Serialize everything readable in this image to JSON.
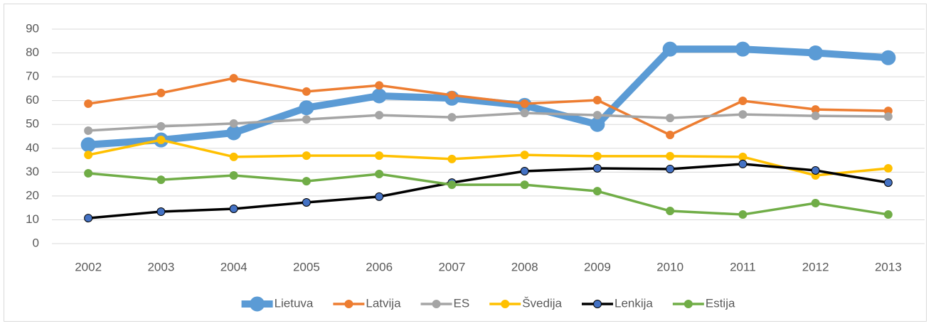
{
  "chart_data": {
    "type": "line",
    "categories": [
      "2002",
      "2003",
      "2004",
      "2005",
      "2006",
      "2007",
      "2008",
      "2009",
      "2010",
      "2011",
      "2012",
      "2013"
    ],
    "series": [
      {
        "name": "Lietuva",
        "color": "#5b9bd5",
        "marker_color": "#5b9bd5",
        "values": [
          41.5,
          43.5,
          46.5,
          57,
          62,
          61,
          58,
          50,
          81.6,
          81.6,
          80,
          78
        ]
      },
      {
        "name": "Latvija",
        "color": "#ed7d31",
        "marker_color": "#ed7d31",
        "values": [
          58.7,
          63.2,
          69.4,
          63.8,
          66.4,
          62.3,
          58.7,
          60.2,
          45.6,
          59.9,
          56.3,
          55.7
        ]
      },
      {
        "name": "ES",
        "color": "#a5a5a5",
        "marker_color": "#a5a5a5",
        "values": [
          47.4,
          49.2,
          50.4,
          52.1,
          53.9,
          53,
          54.8,
          53.9,
          52.7,
          54.2,
          53.6,
          53.3
        ]
      },
      {
        "name": "Švedija",
        "color": "#ffc000",
        "marker_color": "#ffc000",
        "values": [
          37.2,
          43.5,
          36.4,
          36.9,
          36.9,
          35.5,
          37.2,
          36.7,
          36.7,
          36.4,
          28.6,
          31.6
        ]
      },
      {
        "name": "Lenkija",
        "color": "#000000",
        "marker_color": "#4472c4",
        "values": [
          10.7,
          13.4,
          14.6,
          17.3,
          19.7,
          25.6,
          30.4,
          31.6,
          31.3,
          33.4,
          30.7,
          25.6
        ]
      },
      {
        "name": "Estija",
        "color": "#70ad47",
        "marker_color": "#70ad47",
        "values": [
          29.5,
          26.8,
          28.6,
          26.2,
          29.2,
          24.7,
          24.7,
          22,
          13.7,
          12.2,
          17,
          12.2
        ]
      }
    ],
    "ylim": [
      0,
      90
    ],
    "yticks": [
      0,
      10,
      20,
      30,
      40,
      50,
      60,
      70,
      80,
      90
    ],
    "grid": true,
    "legend": "bottom"
  }
}
